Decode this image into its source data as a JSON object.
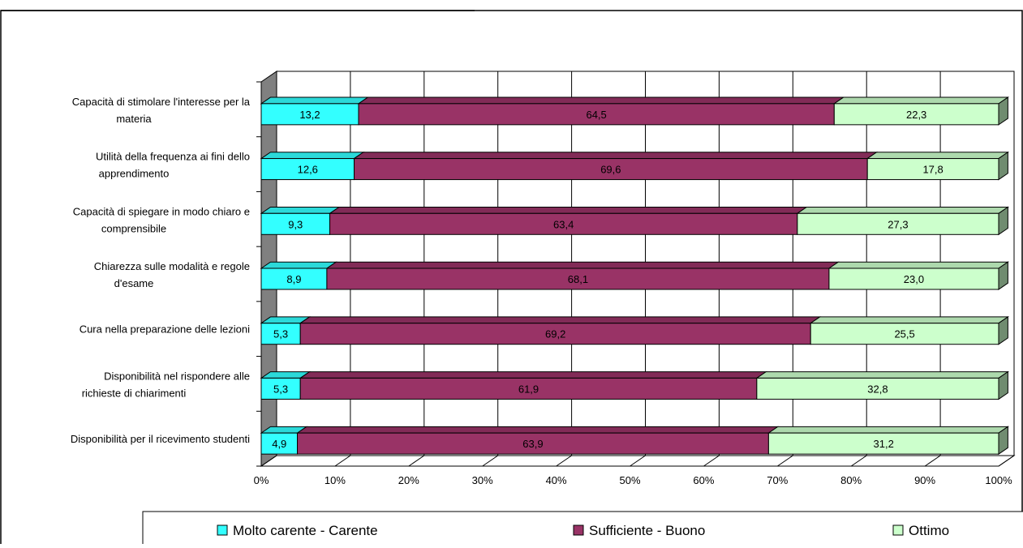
{
  "chart_data": {
    "type": "bar",
    "orientation": "horizontal",
    "stacked": true,
    "percent_stacked": true,
    "categories": [
      [
        "Capacità di stimolare l'interesse per la",
        "materia"
      ],
      [
        "Utilità della frequenza ai fini dello",
        "apprendimento"
      ],
      [
        "Capacità di spiegare in modo chiaro e",
        "comprensibile"
      ],
      [
        "Chiarezza sulle modalità e regole",
        "d'esame"
      ],
      [
        "Cura nella preparazione delle lezioni"
      ],
      [
        "Disponibilità nel rispondere alle",
        "richieste di chiarimenti"
      ],
      [
        "Disponibilità per il ricevimento studenti"
      ]
    ],
    "series": [
      {
        "name": "Molto carente - Carente",
        "color": "#33ffff",
        "values": [
          13.2,
          12.6,
          9.3,
          8.9,
          5.3,
          5.3,
          4.9
        ],
        "labels": [
          "13,2",
          "12,6",
          "9,3",
          "8,9",
          "5,3",
          "5,3",
          "4,9"
        ]
      },
      {
        "name": "Sufficiente - Buono",
        "color": "#993366",
        "values": [
          64.5,
          69.6,
          63.4,
          68.1,
          69.2,
          61.9,
          63.9
        ],
        "labels": [
          "64,5",
          "69,6",
          "63,4",
          "68,1",
          "69,2",
          "61,9",
          "63,9"
        ]
      },
      {
        "name": "Ottimo",
        "color": "#ccffcc",
        "values": [
          22.3,
          17.8,
          27.3,
          23.0,
          25.5,
          32.8,
          31.2
        ],
        "labels": [
          "22,3",
          "17,8",
          "27,3",
          "23,0",
          "25,5",
          "32,8",
          "31,2"
        ]
      }
    ],
    "x_ticks": [
      "0%",
      "10%",
      "20%",
      "30%",
      "40%",
      "50%",
      "60%",
      "70%",
      "80%",
      "90%",
      "100%"
    ],
    "xlim": [
      0,
      100
    ],
    "grid": true,
    "legend": "bottom"
  }
}
